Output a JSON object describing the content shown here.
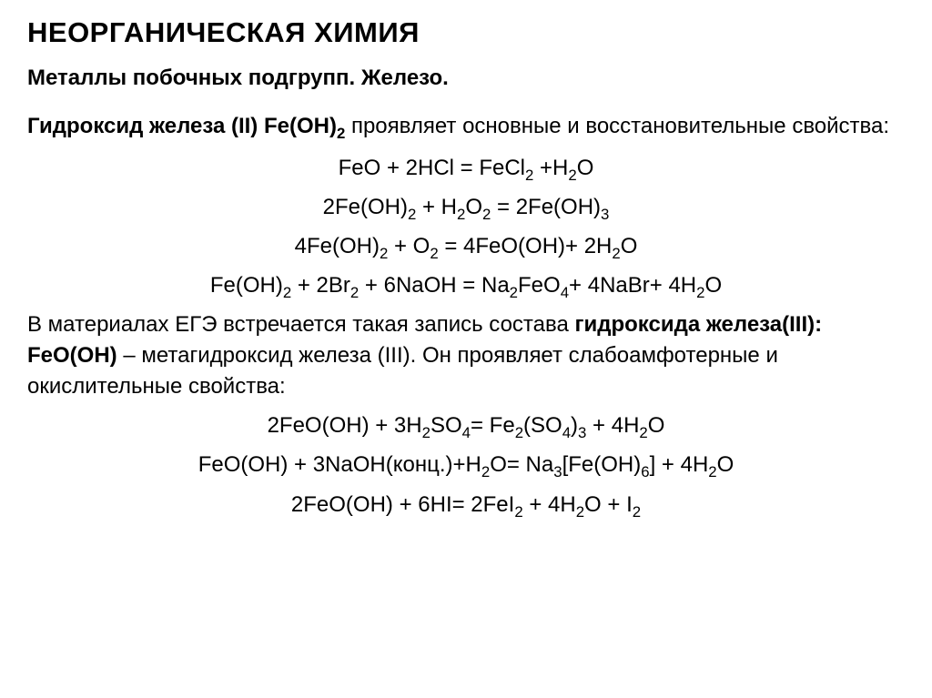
{
  "title": "НЕОРГАНИЧЕСКАЯ ХИМИЯ",
  "subtitle": "Металлы побочных подгрупп. Железо.",
  "section1": {
    "intro_bold": "Гидроксид железа (II) Fe(OH)",
    "intro_sub": "2",
    "intro_rest": " проявляет основные и восстановительные свойства:",
    "equations": [
      "FeO + 2HCl = FeCl<sub>2</sub> +H<sub>2</sub>O",
      "2Fe(OH)<sub>2</sub> + H<sub>2</sub>O<sub>2</sub> = 2Fe(OH)<sub>3</sub>",
      "4Fe(OH)<sub>2</sub> + O<sub>2</sub> = 4FeO(OH)+ 2H<sub>2</sub>O",
      "Fe(OH)<sub>2</sub> + 2Br<sub>2</sub> + 6NaOH = Na<sub>2</sub>FeO<sub>4</sub>+ 4NaBr+ 4H<sub>2</sub>O"
    ]
  },
  "section2": {
    "text_part1": "В материалах ЕГЭ встречается такая запись состава ",
    "text_bold": "гидроксида железа(III): FeO(OH)",
    "text_part2": " – метагидроксид железа (III). Он проявляет слабоамфотерные и окислительные свойства:",
    "equations": [
      "2FeO(OH) + 3H<sub>2</sub>SO<sub>4</sub>= Fe<sub>2</sub>(SO<sub>4</sub>)<sub>3</sub> + 4H<sub>2</sub>O",
      "FeO(OH) +  3NaOH(конц.)+H<sub>2</sub>O= Na<sub>3</sub>[Fe(OH)<sub>6</sub>] + 4H<sub>2</sub>O",
      "2FeO(OH) + 6HI= 2FeI<sub>2</sub> + 4H<sub>2</sub>O + I<sub>2</sub>"
    ]
  },
  "styling": {
    "background_color": "#ffffff",
    "text_color": "#000000",
    "title_fontsize": 31,
    "subtitle_fontsize": 24,
    "body_fontsize": 24,
    "font_family": "Arial"
  }
}
